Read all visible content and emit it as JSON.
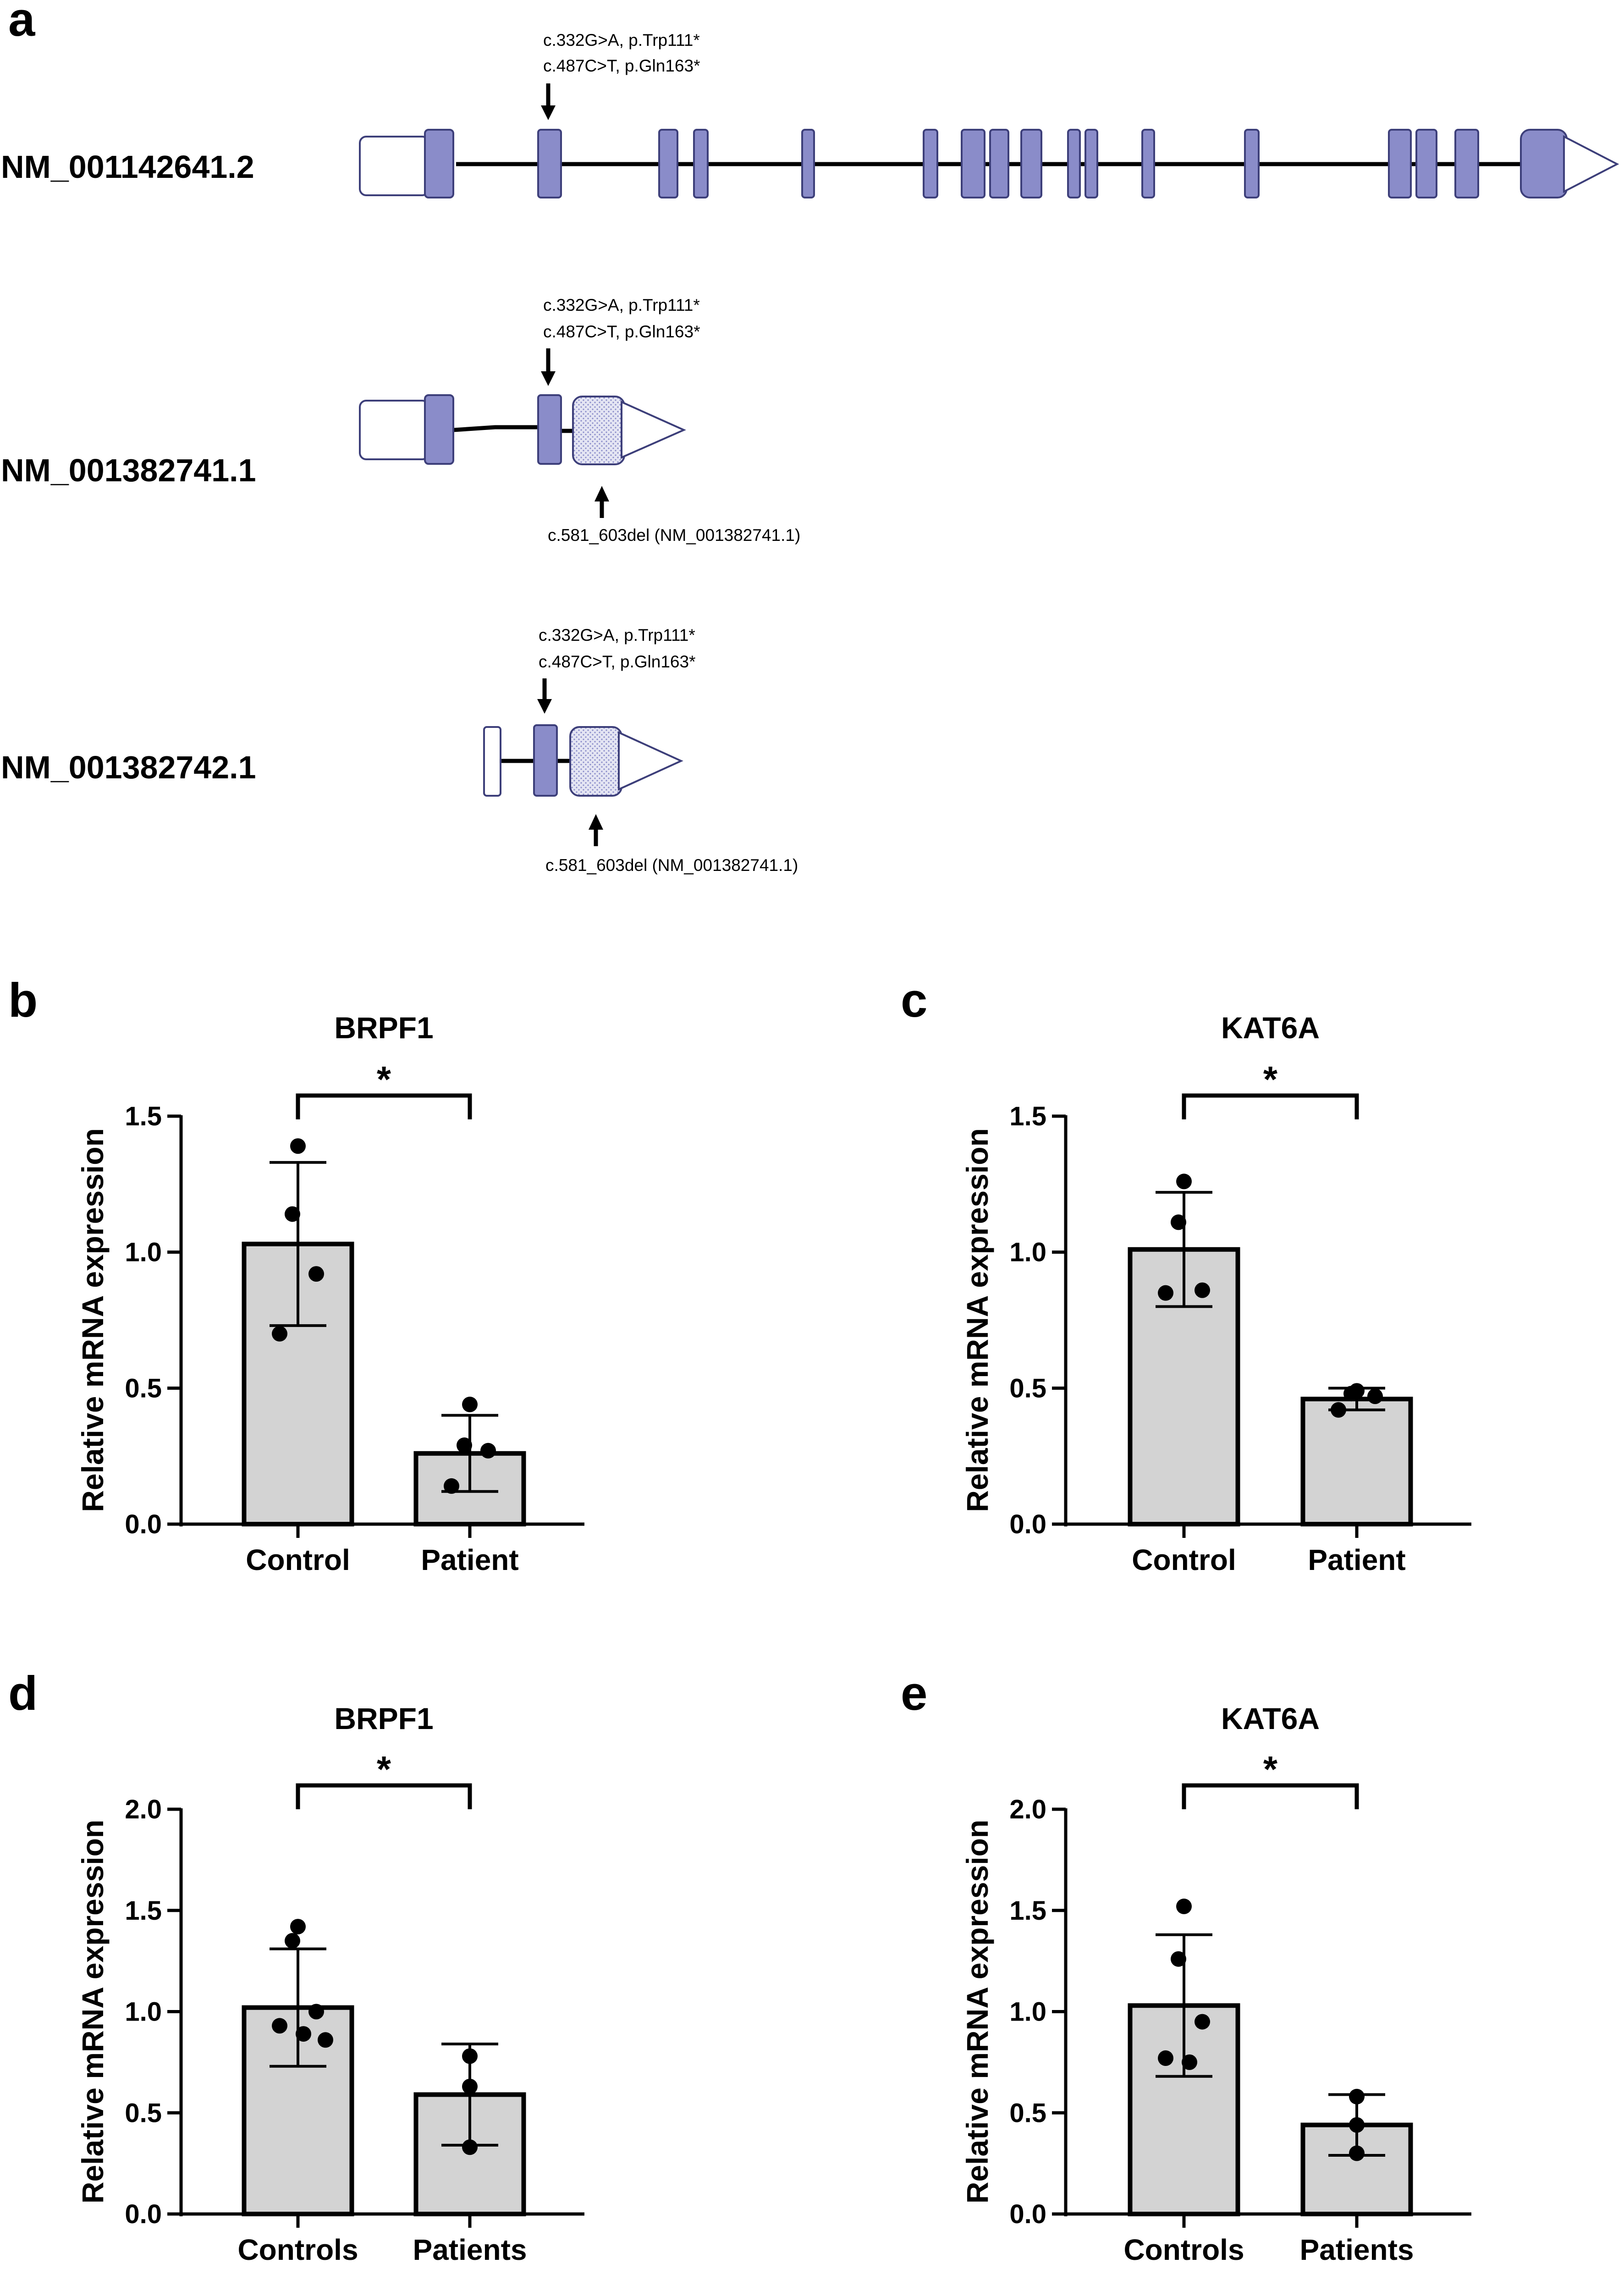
{
  "panel_a": {
    "letter": "a",
    "transcripts": [
      {
        "name": "NM_001142641.2",
        "variants_above": [
          "c.332G>A, p.Trp111*",
          "c.487C>T, p.Gln163*"
        ],
        "variant_below": ""
      },
      {
        "name": "NM_001382741.1",
        "variants_above": [
          "c.332G>A, p.Trp111*",
          "c.487C>T, p.Gln163*"
        ],
        "variant_below": "c.581_603del (NM_001382741.1)"
      },
      {
        "name": "NM_001382742.1",
        "variants_above": [
          "c.332G>A, p.Trp111*",
          "c.487C>T, p.Gln163*"
        ],
        "variant_below": "c.581_603del (NM_001382741.1)"
      }
    ]
  },
  "colors": {
    "exon_fill": "#8a8cc9",
    "exon_stroke": "#3d3f7a",
    "bar_fill": "#d3d3d3",
    "line": "#000000"
  },
  "chart_data": [
    {
      "type": "bar",
      "panel": "b",
      "title": "BRPF1",
      "ylabel": "Relative mRNA expression",
      "ylim": [
        0,
        1.5
      ],
      "yticks": [
        "0.0",
        "0.5",
        "1.0",
        "1.5"
      ],
      "categories": [
        "Control",
        "Patient"
      ],
      "values": [
        1.03,
        0.26
      ],
      "errors": [
        0.3,
        0.14
      ],
      "points": [
        [
          1.39,
          1.14,
          0.92,
          0.7
        ],
        [
          0.44,
          0.29,
          0.27,
          0.14
        ]
      ],
      "significance": "*"
    },
    {
      "type": "bar",
      "panel": "c",
      "title": "KAT6A",
      "ylabel": "Relative mRNA expression",
      "ylim": [
        0,
        1.5
      ],
      "yticks": [
        "0.0",
        "0.5",
        "1.0",
        "1.5"
      ],
      "categories": [
        "Control",
        "Patient"
      ],
      "values": [
        1.01,
        0.46
      ],
      "errors": [
        0.21,
        0.04
      ],
      "points": [
        [
          1.26,
          1.11,
          0.86,
          0.85
        ],
        [
          0.49,
          0.48,
          0.47,
          0.42
        ]
      ],
      "significance": "*"
    },
    {
      "type": "bar",
      "panel": "d",
      "title": "BRPF1",
      "ylabel": "Relative mRNA expression",
      "ylim": [
        0,
        2.0
      ],
      "yticks": [
        "0.0",
        "0.5",
        "1.0",
        "1.5",
        "2.0"
      ],
      "categories": [
        "Controls",
        "Patients"
      ],
      "values": [
        1.02,
        0.59
      ],
      "errors": [
        0.29,
        0.25
      ],
      "points": [
        [
          1.42,
          1.35,
          1.0,
          0.93,
          0.89,
          0.86
        ],
        [
          0.78,
          0.63,
          0.33
        ]
      ],
      "significance": "*"
    },
    {
      "type": "bar",
      "panel": "e",
      "title": "KAT6A",
      "ylabel": "Relative mRNA expression",
      "ylim": [
        0,
        2.0
      ],
      "yticks": [
        "0.0",
        "0.5",
        "1.0",
        "1.5",
        "2.0"
      ],
      "categories": [
        "Controls",
        "Patients"
      ],
      "values": [
        1.03,
        0.44
      ],
      "errors": [
        0.35,
        0.15
      ],
      "points": [
        [
          1.52,
          1.26,
          0.95,
          0.77,
          0.75
        ],
        [
          0.58,
          0.44,
          0.3
        ]
      ],
      "significance": "*"
    }
  ]
}
